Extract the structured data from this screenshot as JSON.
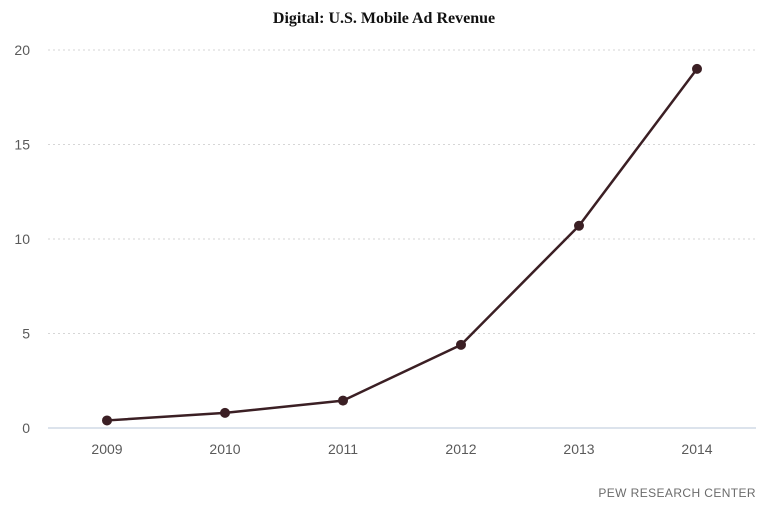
{
  "chart_data": {
    "type": "line",
    "title": "Digital: U.S. Mobile Ad Revenue",
    "xlabel": "",
    "ylabel": "",
    "x": [
      "2009",
      "2010",
      "2011",
      "2012",
      "2013",
      "2014"
    ],
    "series": [
      {
        "values": [
          0.4,
          0.8,
          1.45,
          4.4,
          10.7,
          19.0
        ]
      }
    ],
    "ylim": [
      0,
      20
    ],
    "yticks": [
      0,
      5,
      10,
      15,
      20
    ],
    "grid": true,
    "legend": "none",
    "line_color": "#3b1f24",
    "grid_color": "#d6d6d6",
    "axis_color": "#b9c7d8"
  },
  "source": "PEW RESEARCH CENTER"
}
